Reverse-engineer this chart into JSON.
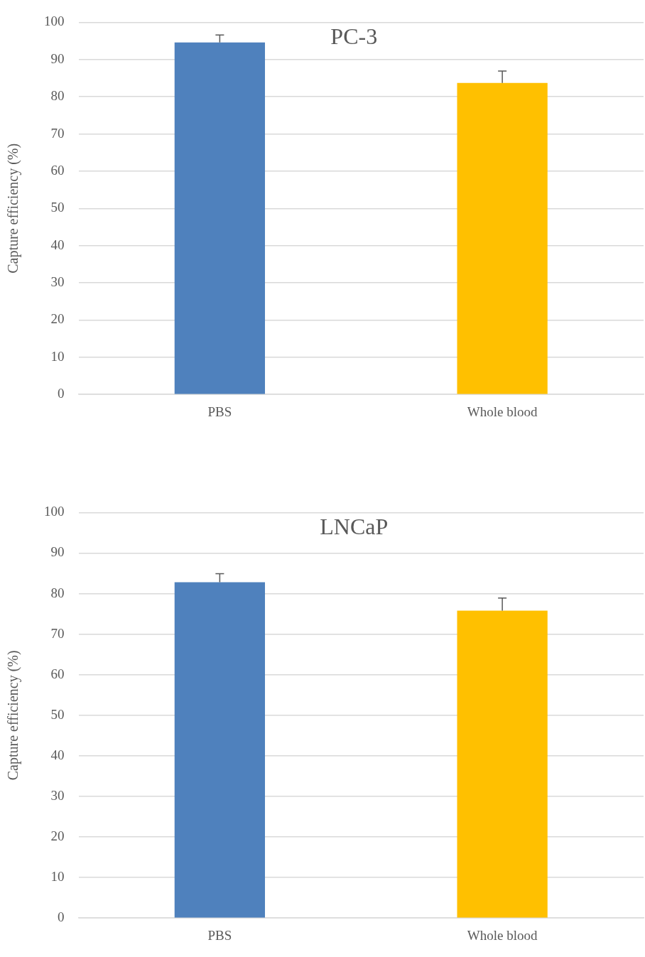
{
  "chart_data": [
    {
      "type": "bar",
      "title": "PC-3",
      "ylabel": "Capture efficiency (%)",
      "categories": [
        "PBS",
        "Whole blood"
      ],
      "values": [
        94.6,
        83.7
      ],
      "colors": [
        "#4f81bd",
        "#ffc000"
      ],
      "errors": [
        [
          94.6,
          96.6
        ],
        [
          83.7,
          86.9
        ]
      ],
      "ylim": [
        0,
        100
      ],
      "yticks": [
        0,
        10,
        20,
        30,
        40,
        50,
        60,
        70,
        80,
        90,
        100
      ],
      "grid": "y",
      "legend": false
    },
    {
      "type": "bar",
      "title": "LNCaP",
      "ylabel": "Capture efficiency (%)",
      "categories": [
        "PBS",
        "Whole blood"
      ],
      "values": [
        82.8,
        75.8
      ],
      "colors": [
        "#4f81bd",
        "#ffc000"
      ],
      "errors": [
        [
          82.8,
          84.9
        ],
        [
          75.8,
          78.9
        ]
      ],
      "ylim": [
        0,
        100
      ],
      "yticks": [
        0,
        10,
        20,
        30,
        40,
        50,
        60,
        70,
        80,
        90,
        100
      ],
      "grid": "y",
      "legend": false
    }
  ]
}
